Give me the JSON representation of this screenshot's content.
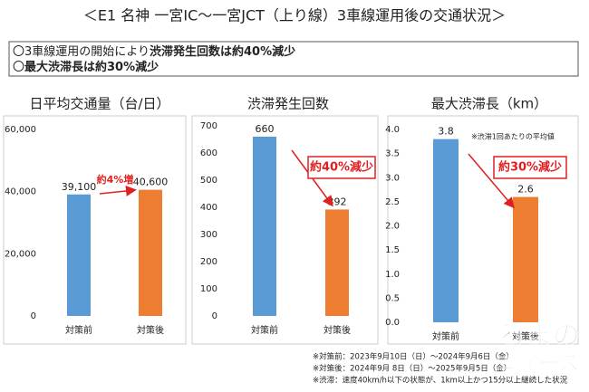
{
  "header": {
    "title": "＜E1 名神 一宮IC～一宮JCT（上り線）3車線運用後の交通状況＞"
  },
  "summary": [
    [
      {
        "text": "〇3車線運用の開始により",
        "bold": false
      },
      {
        "text": "渋滞発生回数は約40%減少",
        "bold": true
      }
    ],
    [
      {
        "text": "〇",
        "bold": false
      },
      {
        "text": "最大渋滞長は約30%減少",
        "bold": true
      }
    ]
  ],
  "chart_data": [
    {
      "type": "bar",
      "title": "日平均交通量（台/日）",
      "categories": [
        "対策前",
        "対策後"
      ],
      "values": [
        39100,
        40600
      ],
      "value_labels": [
        "39,100",
        "40,600"
      ],
      "colors": [
        "#5b9bd5",
        "#ed7d31"
      ],
      "ylim": [
        0,
        60000
      ],
      "yticks": [
        0,
        {
          "value": 20000,
          "label": "20,000"
        },
        {
          "value": 40000,
          "label": "40,000"
        },
        {
          "value": 60000,
          "label": "60,000"
        }
      ],
      "grid": false,
      "annotation": "約4%増",
      "annotation_boxed": false
    },
    {
      "type": "bar",
      "title": "渋滞発生回数",
      "categories": [
        "対策前",
        "対策後"
      ],
      "values": [
        660,
        392
      ],
      "colors": [
        "#5b9bd5",
        "#ed7d31"
      ],
      "ylim": [
        0,
        700
      ],
      "yticks": [
        0,
        100,
        200,
        300,
        400,
        500,
        600,
        700
      ],
      "grid": false,
      "annotation": "約40%減少",
      "annotation_boxed": true
    },
    {
      "type": "bar",
      "title": "最大渋滞長（km）",
      "categories": [
        "対策前",
        "対策後"
      ],
      "values": [
        3.8,
        2.6
      ],
      "colors": [
        "#5b9bd5",
        "#ed7d31"
      ],
      "ylim": [
        0,
        4
      ],
      "yticks": [
        {
          "value": 0,
          "label": "0.0"
        },
        0.5,
        {
          "value": 1,
          "label": "1.0"
        },
        1.5,
        {
          "value": 2,
          "label": "2.0"
        },
        2.5,
        {
          "value": 3,
          "label": "3.0"
        },
        3.5,
        {
          "value": 4,
          "label": "4.0"
        }
      ],
      "grid": false,
      "annotation": "約30%減少",
      "annotation_boxed": true,
      "note": "※渋滞1回あたりの平均値"
    }
  ],
  "footnotes": [
    "※対策前：2023年9月10日（日）～2024年9月6日（金）",
    "※対策後：2024年9月 8日（日）～2025年9月5日（金）",
    "※渋滞：速度40km/h以下の状態が、1km以上かつ15分以上継続した状況"
  ],
  "watermark": [
    "るまの",
    "ニュース"
  ]
}
